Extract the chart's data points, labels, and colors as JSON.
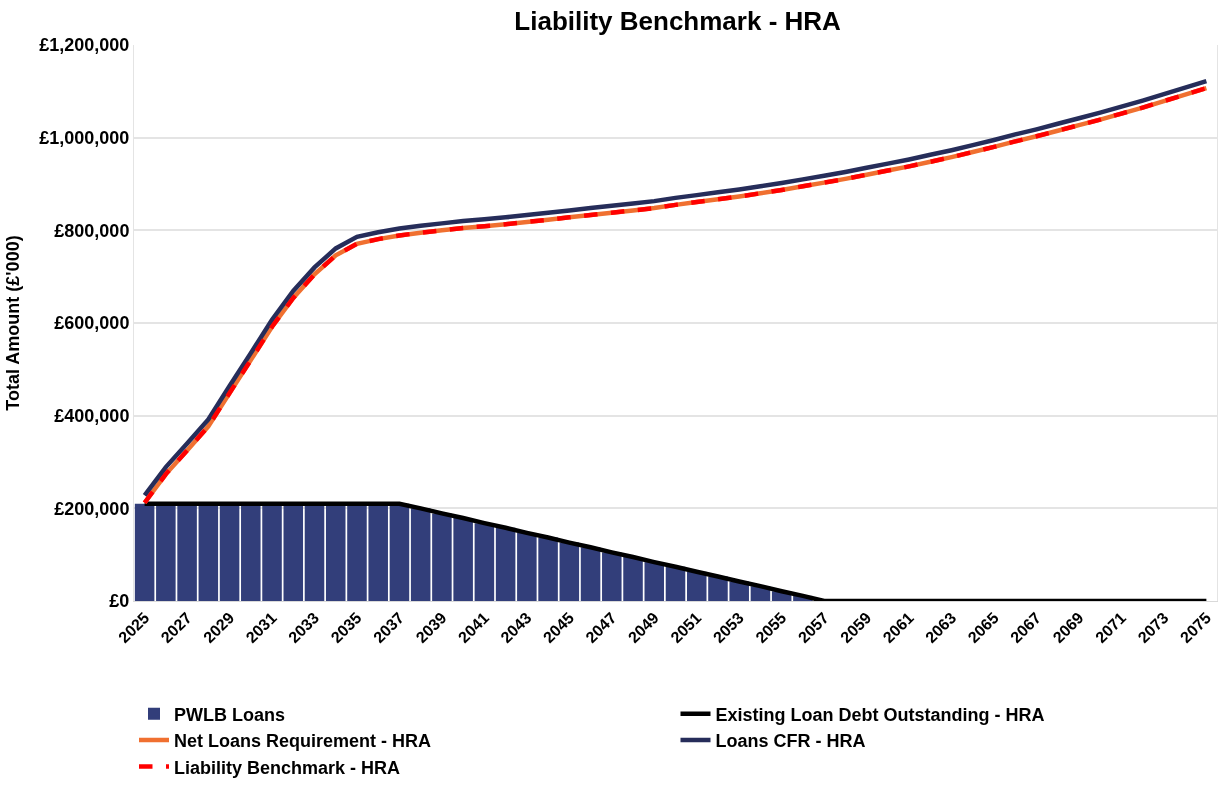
{
  "chart_data": {
    "type": "bar",
    "title": "Liability Benchmark - HRA",
    "ylabel": "Total Amount (£'000)",
    "categories": [
      "2025",
      null,
      "2027",
      null,
      "2029",
      null,
      "2031",
      null,
      "2033",
      null,
      "2035",
      null,
      "2037",
      null,
      "2039",
      null,
      "2041",
      null,
      "2043",
      null,
      "2045",
      null,
      "2047",
      null,
      "2049",
      null,
      "2051",
      null,
      "2053",
      null,
      "2055",
      null,
      "2057",
      null,
      "2059",
      null,
      "2061",
      null,
      "2063",
      null,
      "2065",
      null,
      "2067",
      null,
      "2069",
      null,
      "2071",
      null,
      "2073",
      null,
      "2075"
    ],
    "series": [
      {
        "name": "PWLB Loans",
        "color": "#323e7a",
        "values": [
          210000,
          210000,
          210000,
          210000,
          210000,
          210000,
          210000,
          210000,
          210000,
          210000,
          210000,
          210000,
          210000,
          200000,
          189000,
          179000,
          168000,
          158000,
          147000,
          137000,
          126000,
          116000,
          105000,
          95000,
          84000,
          74000,
          63000,
          53000,
          42000,
          32000,
          21000,
          11000,
          0,
          0,
          0,
          0,
          0,
          0,
          0,
          0,
          0,
          0,
          0,
          0,
          0,
          0,
          0,
          0,
          0,
          0,
          0
        ]
      },
      {
        "name": "Existing Loan Debt Outstanding - HRA",
        "type": "line",
        "color": "#000000",
        "line_style": "solid",
        "values": [
          210000,
          210000,
          210000,
          210000,
          210000,
          210000,
          210000,
          210000,
          210000,
          210000,
          210000,
          210000,
          210000,
          200000,
          189000,
          179000,
          168000,
          158000,
          147000,
          137000,
          126000,
          116000,
          105000,
          95000,
          84000,
          74000,
          63000,
          53000,
          42000,
          32000,
          21000,
          11000,
          0,
          0,
          0,
          0,
          0,
          0,
          0,
          0,
          0,
          0,
          0,
          0,
          0,
          0,
          0,
          0,
          0,
          0,
          0
        ]
      },
      {
        "name": "Net Loans Requirement - HRA",
        "type": "line",
        "color": "#f07030",
        "line_style": "solid",
        "values": [
          212000,
          274000,
          325000,
          377000,
          449000,
          520000,
          592000,
          654000,
          705000,
          746000,
          771000,
          781000,
          789000,
          795000,
          800000,
          805000,
          809000,
          813000,
          818000,
          823000,
          828000,
          833000,
          838000,
          843000,
          848000,
          855000,
          861000,
          867000,
          873000,
          880000,
          887000,
          895000,
          903000,
          911000,
          920000,
          929000,
          938000,
          948000,
          958000,
          969000,
          980000,
          992000,
          1003000,
          1015000,
          1027000,
          1039000,
          1052000,
          1065000,
          1079000,
          1093000,
          1107000
        ]
      },
      {
        "name": "Loans CFR - HRA",
        "type": "line",
        "color": "#262d5a",
        "line_style": "solid",
        "values": [
          228000,
          289000,
          340000,
          392000,
          464000,
          535000,
          607000,
          669000,
          720000,
          761000,
          786000,
          796000,
          804000,
          810000,
          815000,
          820000,
          824000,
          828000,
          833000,
          838000,
          843000,
          848000,
          853000,
          858000,
          863000,
          870000,
          876000,
          882000,
          888000,
          895000,
          902000,
          910000,
          918000,
          926000,
          935000,
          944000,
          953000,
          963000,
          973000,
          984000,
          995000,
          1007000,
          1018000,
          1030000,
          1042000,
          1054000,
          1067000,
          1080000,
          1094000,
          1108000,
          1122000
        ]
      },
      {
        "name": "Liability Benchmark - HRA",
        "type": "line",
        "color": "#ff0000",
        "line_style": "dashed",
        "values": [
          212000,
          274000,
          325000,
          377000,
          449000,
          520000,
          592000,
          654000,
          705000,
          746000,
          771000,
          781000,
          789000,
          795000,
          800000,
          805000,
          809000,
          813000,
          818000,
          823000,
          828000,
          833000,
          838000,
          843000,
          848000,
          855000,
          861000,
          867000,
          873000,
          880000,
          887000,
          895000,
          903000,
          911000,
          920000,
          929000,
          938000,
          948000,
          958000,
          969000,
          980000,
          992000,
          1003000,
          1015000,
          1027000,
          1039000,
          1052000,
          1065000,
          1079000,
          1093000,
          1107000
        ]
      }
    ],
    "ylim": [
      0,
      1200000
    ],
    "yticks": [
      {
        "value": 0,
        "label": "£0"
      },
      {
        "value": 200000,
        "label": "£200,000"
      },
      {
        "value": 400000,
        "label": "£400,000"
      },
      {
        "value": 600000,
        "label": "£600,000"
      },
      {
        "value": 800000,
        "label": "£800,000"
      },
      {
        "value": 1000000,
        "label": "£1,000,000"
      },
      {
        "value": 1200000,
        "label": "£1,200,000"
      }
    ],
    "grid": "y",
    "legend": "bottom",
    "marker": "none"
  }
}
